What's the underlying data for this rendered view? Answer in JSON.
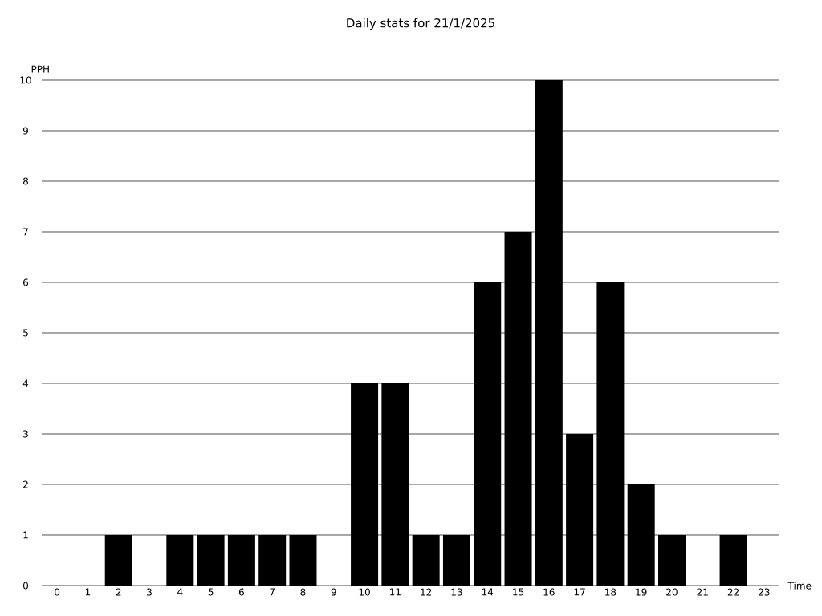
{
  "chart_data": {
    "type": "bar",
    "title": "Daily stats for 21/1/2025",
    "xlabel": "Time",
    "ylabel": "PPH",
    "categories": [
      "0",
      "1",
      "2",
      "3",
      "4",
      "5",
      "6",
      "7",
      "8",
      "9",
      "10",
      "11",
      "12",
      "13",
      "14",
      "15",
      "16",
      "17",
      "18",
      "19",
      "20",
      "21",
      "22",
      "23"
    ],
    "values": [
      0,
      0,
      1,
      0,
      1,
      1,
      1,
      1,
      1,
      0,
      4,
      4,
      1,
      1,
      6,
      7,
      10,
      3,
      6,
      2,
      1,
      0,
      1,
      0
    ],
    "color": "#000000",
    "ylim": [
      0,
      10
    ],
    "yticks": [
      0,
      1,
      2,
      3,
      4,
      5,
      6,
      7,
      8,
      9,
      10
    ],
    "grid": "y"
  }
}
